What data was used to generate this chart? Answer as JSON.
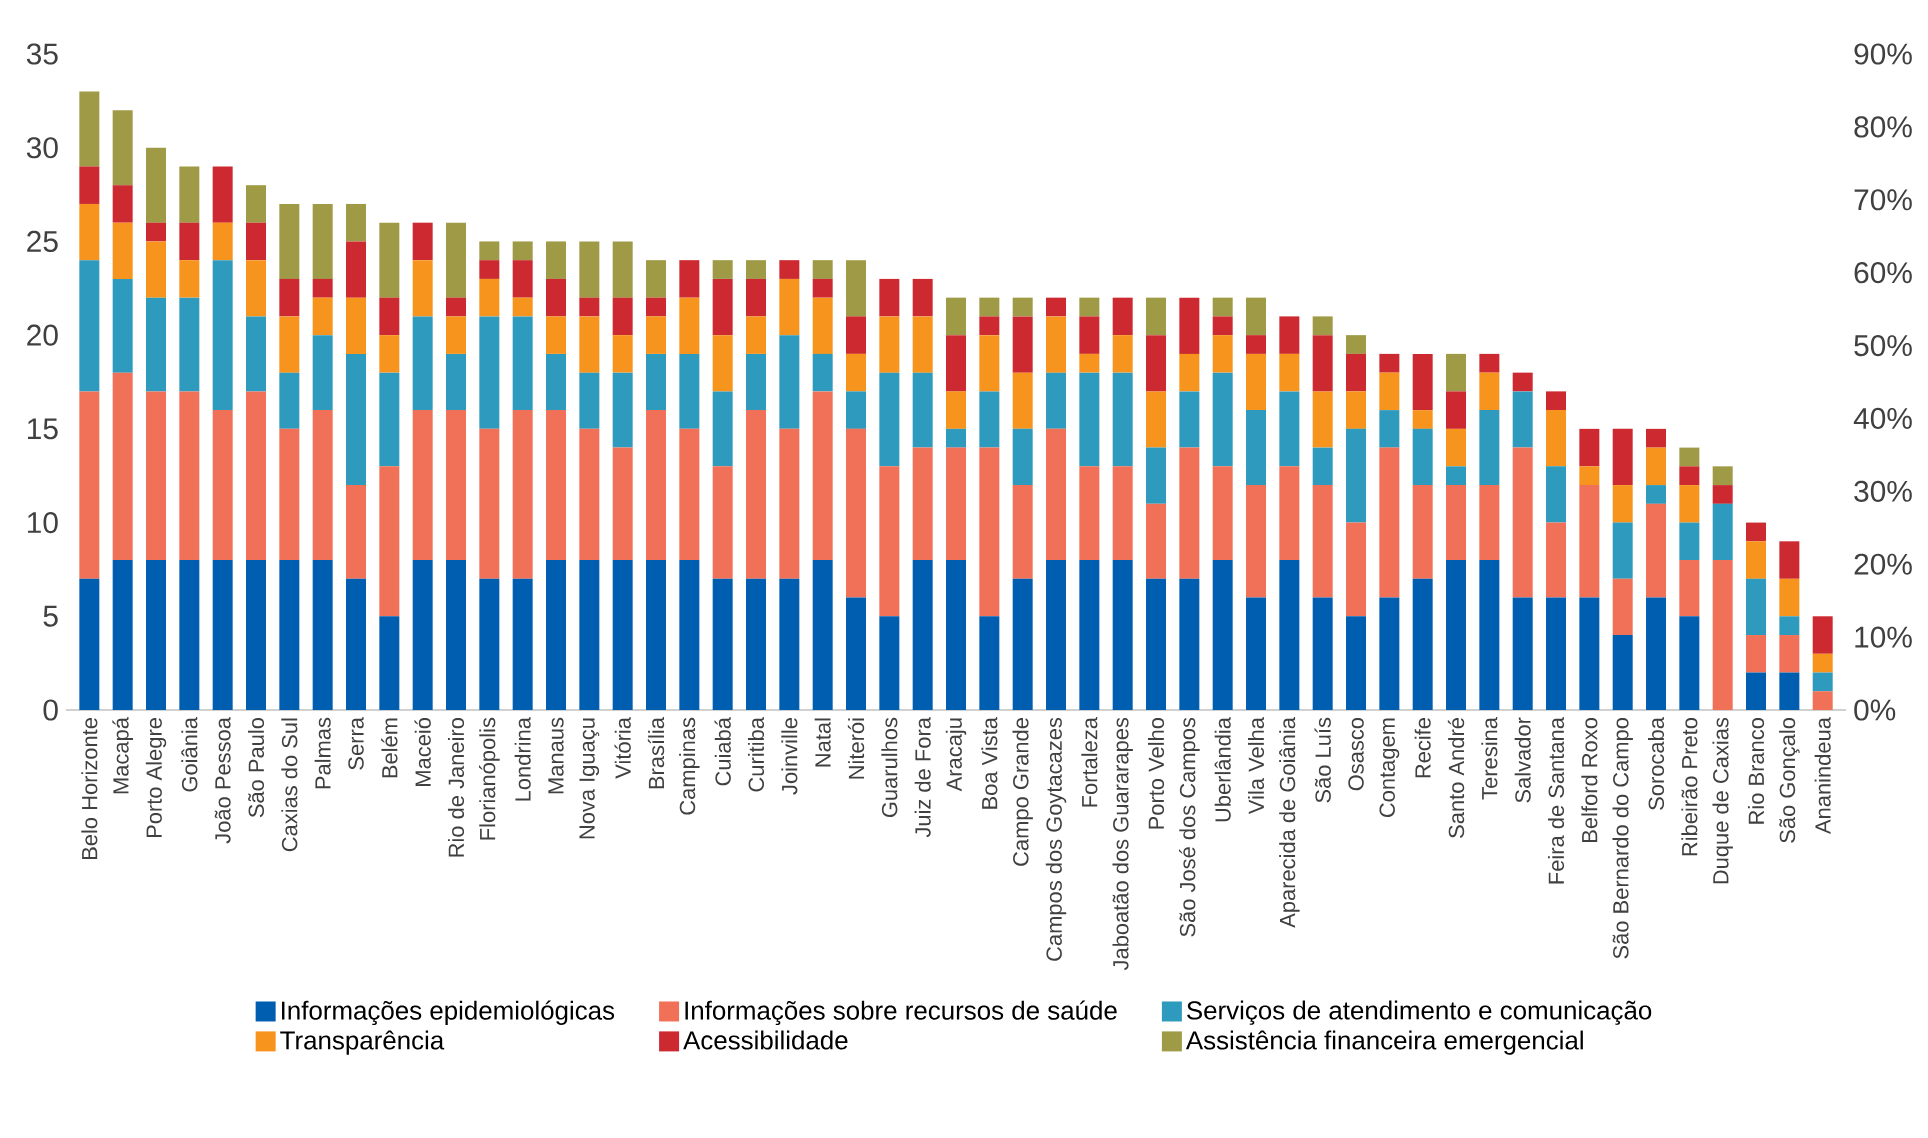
{
  "chart_data": {
    "type": "bar",
    "stacked": true,
    "legend": "bottom",
    "categories": [
      "Belo Horizonte",
      "Macapá",
      "Porto Alegre",
      "Goiânia",
      "João Pessoa",
      "São Paulo",
      "Caxias do Sul",
      "Palmas",
      "Serra",
      "Belém",
      "Maceió",
      "Rio de Janeiro",
      "Florianópolis",
      "Londrina",
      "Manaus",
      "Nova Iguaçu",
      "Vitória",
      "Brasília",
      "Campinas",
      "Cuiabá",
      "Curitiba",
      "Joinville",
      "Natal",
      "Niterói",
      "Guarulhos",
      "Juiz de Fora",
      "Aracaju",
      "Boa Vista",
      "Campo Grande",
      "Campos dos Goytacazes",
      "Fortaleza",
      "Jaboatão dos Guararapes",
      "Porto Velho",
      "São José dos Campos",
      "Uberlândia",
      "Vila Velha",
      "Aparecida de Goiânia",
      "São Luís",
      "Osasco",
      "Contagem",
      "Recife",
      "Santo André",
      "Teresina",
      "Salvador",
      "Feira de Santana",
      "Belford Roxo",
      "São Bernardo do Campo",
      "Sorocaba",
      "Ribeirão Preto",
      "Duque de Caxias",
      "Rio Branco",
      "São Gonçalo",
      "Ananindeua"
    ],
    "series": [
      {
        "name": "Informações epidemiológicas",
        "color": "#005eb0",
        "values": [
          7,
          8,
          8,
          8,
          8,
          8,
          8,
          8,
          7,
          5,
          8,
          8,
          7,
          7,
          8,
          8,
          8,
          8,
          8,
          7,
          7,
          7,
          8,
          6,
          5,
          8,
          8,
          5,
          7,
          8,
          8,
          8,
          7,
          7,
          8,
          6,
          8,
          6,
          5,
          6,
          7,
          8,
          8,
          6,
          6,
          6,
          4,
          6,
          5,
          0,
          2,
          2,
          0
        ]
      },
      {
        "name": "Informações sobre recursos de saúde",
        "color": "#f07157",
        "values": [
          10,
          10,
          9,
          9,
          8,
          9,
          7,
          8,
          5,
          8,
          8,
          8,
          8,
          9,
          8,
          7,
          6,
          8,
          7,
          6,
          9,
          8,
          9,
          9,
          8,
          6,
          6,
          9,
          5,
          7,
          5,
          5,
          4,
          7,
          5,
          6,
          5,
          6,
          5,
          8,
          5,
          4,
          4,
          8,
          4,
          6,
          3,
          5,
          3,
          8,
          2,
          2,
          1
        ]
      },
      {
        "name": "Serviços de atendimento e comunicação",
        "color": "#2e9abd",
        "values": [
          7,
          5,
          5,
          5,
          8,
          4,
          3,
          4,
          7,
          5,
          5,
          3,
          6,
          5,
          3,
          3,
          4,
          3,
          4,
          4,
          3,
          5,
          2,
          2,
          5,
          4,
          1,
          3,
          3,
          3,
          5,
          5,
          3,
          3,
          5,
          4,
          4,
          2,
          5,
          2,
          3,
          1,
          4,
          3,
          3,
          0,
          3,
          1,
          2,
          3,
          3,
          1,
          1
        ]
      },
      {
        "name": "Transparência",
        "color": "#f7941d",
        "values": [
          3,
          3,
          3,
          2,
          2,
          3,
          3,
          2,
          3,
          2,
          3,
          2,
          2,
          1,
          2,
          3,
          2,
          2,
          3,
          3,
          2,
          3,
          3,
          2,
          3,
          3,
          2,
          3,
          3,
          3,
          1,
          2,
          3,
          2,
          2,
          3,
          2,
          3,
          2,
          2,
          1,
          2,
          2,
          0,
          3,
          1,
          2,
          2,
          2,
          0,
          2,
          2,
          1
        ]
      },
      {
        "name": "Acessibilidade",
        "color": "#cc2a30",
        "values": [
          2,
          2,
          1,
          2,
          3,
          2,
          2,
          1,
          3,
          2,
          2,
          1,
          1,
          2,
          2,
          1,
          2,
          1,
          2,
          3,
          2,
          1,
          1,
          2,
          2,
          2,
          3,
          1,
          3,
          1,
          2,
          2,
          3,
          3,
          1,
          1,
          2,
          3,
          2,
          1,
          3,
          2,
          1,
          1,
          1,
          2,
          3,
          1,
          1,
          1,
          1,
          2,
          2
        ]
      },
      {
        "name": "Assistência financeira emergencial",
        "color": "#9e9a45",
        "values": [
          4,
          4,
          4,
          3,
          0,
          2,
          4,
          4,
          2,
          4,
          0,
          4,
          1,
          1,
          2,
          3,
          3,
          2,
          0,
          1,
          1,
          0,
          1,
          3,
          0,
          0,
          2,
          1,
          1,
          0,
          1,
          0,
          2,
          0,
          1,
          2,
          0,
          1,
          1,
          0,
          0,
          2,
          0,
          0,
          0,
          0,
          0,
          0,
          1,
          1,
          0,
          0,
          0
        ]
      }
    ],
    "ylim": [
      0,
      35
    ],
    "yticks": [
      0,
      5,
      10,
      15,
      20,
      25,
      30,
      35
    ],
    "y2lim": [
      0,
      90
    ],
    "y2ticks": [
      {
        "value": 0,
        "label": "0%"
      },
      {
        "value": 10,
        "label": "10%"
      },
      {
        "value": 20,
        "label": "20%"
      },
      {
        "value": 30,
        "label": "30%"
      },
      {
        "value": 40,
        "label": "40%"
      },
      {
        "value": 50,
        "label": "50%"
      },
      {
        "value": 60,
        "label": "60%"
      },
      {
        "value": 70,
        "label": "70%"
      },
      {
        "value": 80,
        "label": "80%"
      },
      {
        "value": 90,
        "label": "90%"
      }
    ]
  }
}
